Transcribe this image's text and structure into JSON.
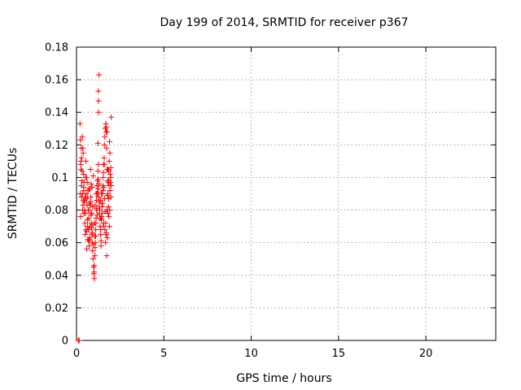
{
  "chart_data": {
    "type": "scatter",
    "title": "Day 199 of 2014, SRMTID for receiver p367",
    "xlabel": "GPS time / hours",
    "ylabel": "SRMTID / TECUs",
    "xlim": [
      0,
      24
    ],
    "ylim": [
      0,
      0.18
    ],
    "xticks": [
      0,
      5,
      10,
      15,
      20
    ],
    "yticks": [
      0,
      0.02,
      0.04,
      0.06,
      0.08,
      0.1,
      0.12,
      0.14,
      0.16,
      0.18
    ],
    "xtick_labels": [
      "0",
      "5",
      "10",
      "15",
      "20"
    ],
    "ytick_labels": [
      "0",
      "0.02",
      "0.04",
      "0.06",
      "0.08",
      "0.1",
      "0.12",
      "0.14",
      "0.16",
      "0.18"
    ],
    "grid": true,
    "marker": "+",
    "color": "#ff0000",
    "series": [
      {
        "name": "SRMTID",
        "x": [
          0.1,
          0.12,
          0.15,
          0.2,
          0.22,
          0.25,
          0.28,
          0.3,
          0.33,
          0.35,
          0.38,
          0.4,
          0.42,
          0.45,
          0.48,
          0.5,
          0.52,
          0.55,
          0.58,
          0.6,
          0.62,
          0.65,
          0.68,
          0.7,
          0.72,
          0.75,
          0.78,
          0.8,
          0.82,
          0.85,
          0.88,
          0.9,
          0.92,
          0.95,
          0.98,
          1.0,
          1.02,
          1.05,
          1.08,
          1.1,
          1.12,
          1.15,
          1.18,
          1.2,
          1.22,
          1.25,
          1.28,
          1.3,
          1.32,
          1.35,
          1.38,
          1.4,
          1.42,
          1.45,
          1.48,
          1.5,
          1.52,
          1.55,
          1.58,
          1.6,
          1.62,
          1.65,
          1.68,
          1.7,
          1.72,
          1.75,
          1.78,
          1.8,
          1.82,
          1.85,
          1.88,
          1.9,
          1.92,
          1.95,
          1.98,
          0.24,
          0.27,
          0.31,
          0.34,
          0.37,
          0.41,
          0.44,
          0.47,
          0.51,
          0.54,
          0.57,
          0.61,
          0.64,
          0.67,
          0.71,
          0.74,
          0.77,
          0.81,
          0.84,
          0.87,
          0.91,
          0.94,
          0.97,
          1.01,
          1.04,
          1.07,
          1.11,
          1.14,
          1.17,
          1.21,
          1.24,
          1.27,
          1.31,
          1.34,
          1.37,
          1.41,
          1.44,
          1.47,
          1.51,
          1.54,
          1.57,
          1.61,
          1.64,
          1.67,
          1.71,
          1.74,
          1.77,
          1.81,
          1.84,
          1.87,
          1.91,
          1.94,
          1.97,
          0.21,
          0.26,
          0.29,
          0.36,
          0.39,
          0.43,
          0.46,
          0.53,
          0.56,
          0.63,
          0.66,
          0.73,
          0.76,
          0.83,
          0.86,
          0.93,
          0.96,
          1.03,
          1.06,
          1.13,
          1.16,
          1.23,
          1.26,
          1.33,
          1.36,
          1.43,
          1.46,
          1.53,
          1.56,
          1.63,
          1.66,
          1.73,
          1.76,
          1.83,
          1.86,
          1.93,
          1.96,
          0.23,
          0.32,
          0.49,
          0.59,
          0.69,
          0.79,
          0.89,
          0.99,
          1.09,
          1.19,
          1.29,
          1.39,
          1.49,
          1.59,
          1.69,
          1.79,
          1.89,
          1.99,
          1.25,
          1.26,
          1.27,
          1.22,
          1.7,
          1.75,
          1.85,
          1.8
        ],
        "y": [
          0.0,
          0.0,
          0.0,
          0.133,
          0.123,
          0.11,
          0.095,
          0.088,
          0.125,
          0.08,
          0.115,
          0.102,
          0.092,
          0.085,
          0.072,
          0.065,
          0.078,
          0.09,
          0.1,
          0.083,
          0.07,
          0.062,
          0.068,
          0.075,
          0.058,
          0.08,
          0.093,
          0.105,
          0.088,
          0.072,
          0.065,
          0.06,
          0.055,
          0.05,
          0.045,
          0.042,
          0.038,
          0.052,
          0.06,
          0.068,
          0.075,
          0.08,
          0.09,
          0.098,
          0.104,
          0.108,
          0.096,
          0.085,
          0.078,
          0.07,
          0.065,
          0.058,
          0.074,
          0.082,
          0.09,
          0.095,
          0.1,
          0.108,
          0.112,
          0.12,
          0.125,
          0.13,
          0.133,
          0.128,
          0.118,
          0.105,
          0.098,
          0.09,
          0.082,
          0.076,
          0.07,
          0.08,
          0.092,
          0.1,
          0.095,
          0.108,
          0.118,
          0.098,
          0.09,
          0.083,
          0.094,
          0.078,
          0.086,
          0.1,
          0.11,
          0.067,
          0.097,
          0.088,
          0.08,
          0.093,
          0.062,
          0.07,
          0.085,
          0.096,
          0.078,
          0.066,
          0.071,
          0.059,
          0.046,
          0.064,
          0.083,
          0.072,
          0.086,
          0.095,
          0.091,
          0.099,
          0.088,
          0.082,
          0.075,
          0.068,
          0.061,
          0.076,
          0.084,
          0.092,
          0.103,
          0.094,
          0.087,
          0.079,
          0.072,
          0.066,
          0.08,
          0.089,
          0.097,
          0.104,
          0.11,
          0.115,
          0.097,
          0.088,
          0.09,
          0.105,
          0.112,
          0.118,
          0.086,
          0.097,
          0.08,
          0.068,
          0.087,
          0.074,
          0.092,
          0.084,
          0.063,
          0.077,
          0.069,
          0.082,
          0.101,
          0.072,
          0.057,
          0.09,
          0.081,
          0.093,
          0.088,
          0.08,
          0.086,
          0.09,
          0.078,
          0.07,
          0.072,
          0.068,
          0.06,
          0.052,
          0.063,
          0.087,
          0.095,
          0.102,
          0.106,
          0.076,
          0.104,
          0.088,
          0.056,
          0.061,
          0.083,
          0.094,
          0.041,
          0.064,
          0.077,
          0.163,
          0.075,
          0.084,
          0.108,
          0.065,
          0.078,
          0.122,
          0.137,
          0.153,
          0.147,
          0.14,
          0.121,
          0.131,
          0.128,
          0.098,
          0.105
        ]
      }
    ]
  }
}
